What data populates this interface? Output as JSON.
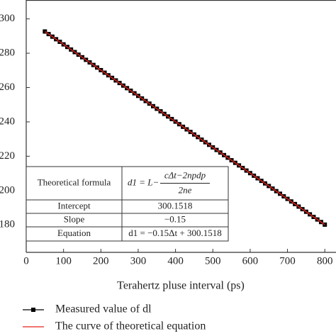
{
  "chart_data": {
    "type": "line",
    "xlabel": "Terahertz pluse interval (ps)",
    "xlim": [
      0,
      830
    ],
    "xticks": [
      0,
      100,
      200,
      300,
      400,
      500,
      600,
      700,
      800
    ],
    "ylim": [
      164,
      311
    ],
    "yticks": [
      180,
      200,
      220,
      240,
      260,
      280,
      300
    ],
    "series": [
      {
        "name": "Measured value of dl",
        "color": "#000000",
        "marker": "square",
        "x": [
          50,
          60,
          70,
          80,
          90,
          100,
          110,
          120,
          130,
          140,
          150,
          160,
          170,
          180,
          190,
          200,
          210,
          220,
          230,
          240,
          250,
          260,
          270,
          280,
          290,
          300,
          310,
          320,
          330,
          340,
          350,
          360,
          370,
          380,
          390,
          400,
          410,
          420,
          430,
          440,
          450,
          460,
          470,
          480,
          490,
          500,
          510,
          520,
          530,
          540,
          550,
          560,
          570,
          580,
          590,
          600,
          610,
          620,
          630,
          640,
          650,
          660,
          670,
          680,
          690,
          700,
          710,
          720,
          730,
          740,
          750,
          760,
          770,
          780,
          790,
          800
        ],
        "values": [
          292.65,
          291.15,
          289.65,
          288.15,
          286.65,
          285.15,
          283.65,
          282.15,
          280.65,
          279.15,
          277.65,
          276.15,
          274.65,
          273.15,
          271.65,
          270.15,
          268.65,
          267.15,
          265.65,
          264.15,
          262.65,
          261.15,
          259.65,
          258.15,
          256.65,
          255.15,
          253.65,
          252.15,
          250.65,
          249.15,
          247.65,
          246.15,
          244.65,
          243.15,
          241.65,
          240.15,
          238.65,
          237.15,
          235.65,
          234.15,
          232.65,
          231.15,
          229.65,
          228.15,
          226.65,
          225.15,
          223.65,
          222.15,
          220.65,
          219.15,
          217.65,
          216.15,
          214.65,
          213.15,
          211.65,
          210.15,
          208.65,
          207.15,
          205.65,
          204.15,
          202.65,
          201.15,
          199.65,
          198.15,
          196.65,
          195.15,
          193.65,
          192.15,
          190.65,
          189.15,
          187.65,
          186.15,
          184.65,
          183.15,
          181.65,
          180.15
        ]
      },
      {
        "name": "The curve of theoretical equation",
        "color": "#e8201a",
        "x": [
          50,
          800
        ],
        "values": [
          292.65,
          180.15
        ]
      }
    ],
    "table": {
      "rows": [
        [
          "Theoretical formula",
          {
            "lhs": "d1 = L−",
            "numerator": "cΔt−2npdp",
            "denominator": "2ne"
          }
        ],
        [
          "Intercept",
          "300.1518"
        ],
        [
          "Slope",
          "−0.15"
        ],
        [
          "Equation",
          "d1 = −0.15Δt + 300.1518"
        ]
      ]
    }
  }
}
